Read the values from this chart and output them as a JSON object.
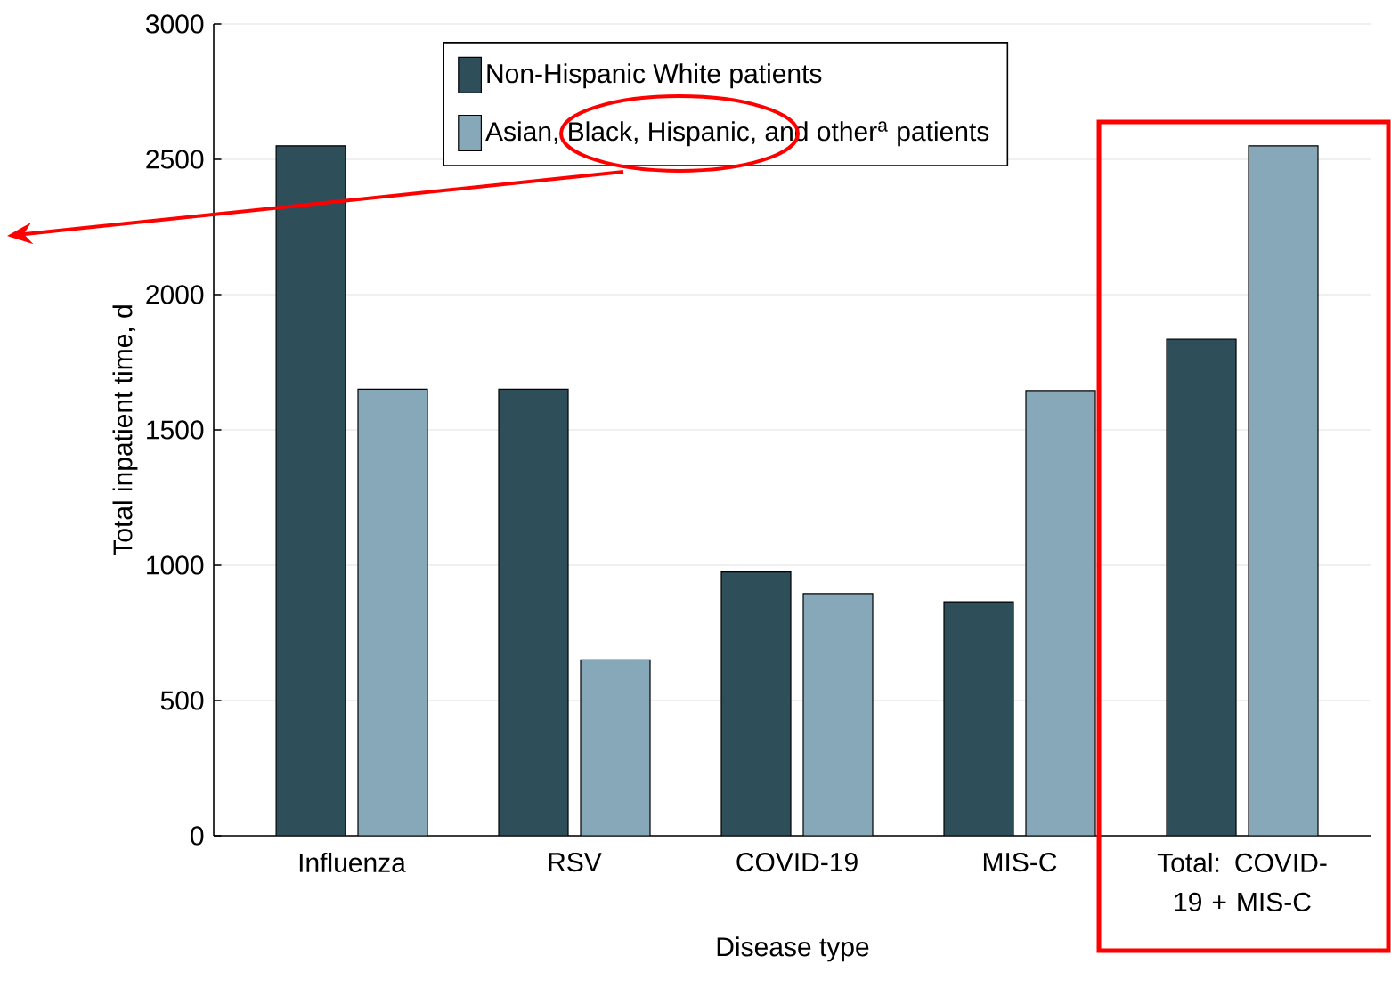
{
  "chart_data": {
    "type": "bar",
    "xlabel": "Disease type",
    "ylabel": "Total inpatient time, d",
    "categories": [
      "Influenza",
      "RSV",
      "COVID-19",
      "MIS-C",
      "Total: COVID-19 + MIS-C"
    ],
    "series": [
      {
        "name": "Non-Hispanic White patients",
        "color": "#2e4f5a",
        "values": [
          2550,
          1650,
          975,
          865,
          1835
        ]
      },
      {
        "name": "Asian, Black, Hispanic, and other$^{a}$ patients",
        "color": "#86a8b8",
        "values": [
          1650,
          650,
          895,
          1645,
          2550
        ]
      }
    ],
    "ylim": [
      0,
      3000
    ],
    "yticks": [
      0,
      500,
      1000,
      1500,
      2000,
      2500,
      3000
    ],
    "grid": "y",
    "legend": "top"
  }
}
